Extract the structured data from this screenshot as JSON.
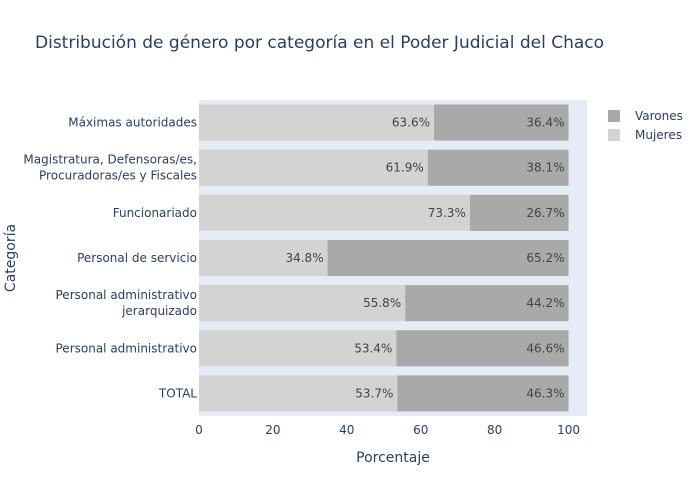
{
  "chart_data": {
    "type": "bar",
    "orientation": "horizontal",
    "stacked": true,
    "title": "Distribución de género por categoría en el Poder Judicial del Chaco",
    "xlabel": "Porcentaje",
    "ylabel": "Categoría",
    "xlim": [
      0,
      105
    ],
    "xticks": [
      "0",
      "20",
      "40",
      "60",
      "80",
      "100"
    ],
    "categories": [
      [
        "Máximas autoridades"
      ],
      [
        "Magistratura, Defensoras/es,",
        "Procuradoras/es y Fiscales"
      ],
      [
        "Funcionariado"
      ],
      [
        "Personal de servicio"
      ],
      [
        "Personal administrativo",
        "jerarquizado"
      ],
      [
        "Personal administrativo"
      ],
      [
        "TOTAL"
      ]
    ],
    "series": [
      {
        "name": "Mujeres",
        "color": "#d3d3d3",
        "values": [
          63.6,
          61.9,
          73.3,
          34.8,
          55.8,
          53.4,
          53.7
        ],
        "labels": [
          "63.6%",
          "61.9%",
          "73.3%",
          "34.8%",
          "55.8%",
          "53.4%",
          "53.7%"
        ]
      },
      {
        "name": "Varones",
        "color": "#a9a9a9",
        "values": [
          36.4,
          38.1,
          26.7,
          65.2,
          44.2,
          46.6,
          46.3
        ],
        "labels": [
          "36.4%",
          "38.1%",
          "26.7%",
          "65.2%",
          "44.2%",
          "46.6%",
          "46.3%"
        ]
      }
    ],
    "legend": {
      "placement": "top-right",
      "order": [
        "Varones",
        "Mujeres"
      ]
    },
    "plot_background": "#e5ecf6",
    "grid": false
  }
}
